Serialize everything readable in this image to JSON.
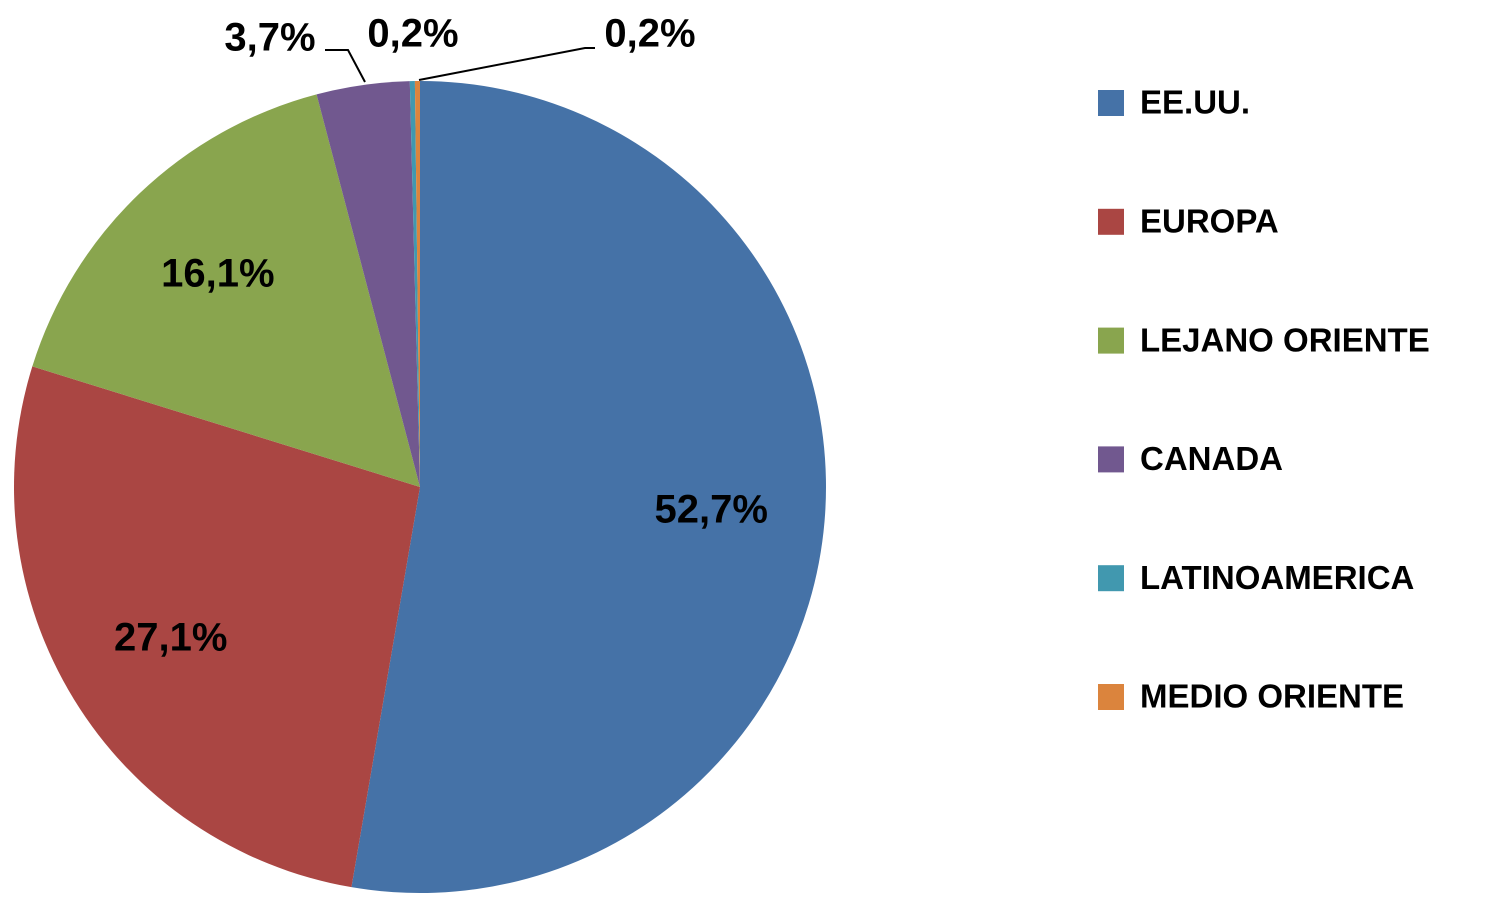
{
  "chart_data": {
    "type": "pie",
    "categories": [
      "EE.UU.",
      "EUROPA",
      "LEJANO ORIENTE",
      "CANADA",
      "LATINOAMERICA",
      "MEDIO ORIENTE"
    ],
    "values": [
      52.7,
      27.1,
      16.1,
      3.7,
      0.2,
      0.2
    ],
    "value_labels": [
      "52,7%",
      "27,1%",
      "16,1%",
      "3,7%",
      "0,2%",
      "0,2%"
    ],
    "colors": [
      "#4572a7",
      "#aa4643",
      "#89a54e",
      "#71588f",
      "#4198af",
      "#db843d"
    ],
    "legend": "right"
  }
}
